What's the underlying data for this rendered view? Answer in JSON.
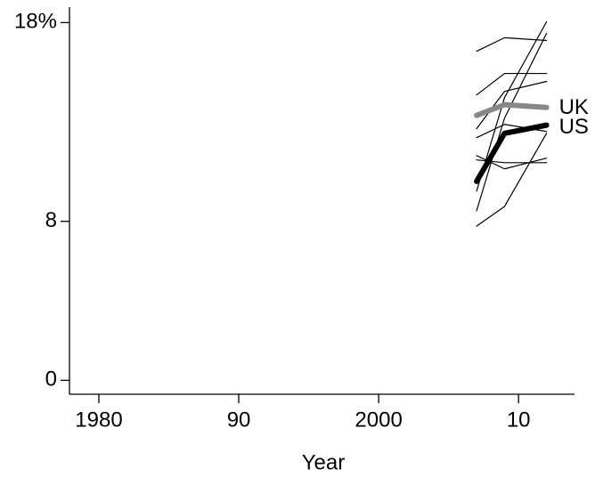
{
  "chart_data": {
    "type": "line",
    "x": [
      2007,
      2009,
      2012
    ],
    "xlabel": "Year",
    "xlim": [
      1977.9,
      2014
    ],
    "xticks": [
      1980,
      {
        "value": 1990,
        "label": "90"
      },
      2000,
      {
        "value": 2010,
        "label": "10"
      }
    ],
    "ylim": [
      -0.7,
      18.6
    ],
    "yticks": [
      0,
      8,
      {
        "value": 18,
        "label": "18%"
      }
    ],
    "series": [
      {
        "color": "#000000",
        "values": [
          16.56,
          17.24,
          17.1
        ]
      },
      {
        "color": "#000000",
        "values": [
          14.36,
          15.44,
          15.44
        ]
      },
      {
        "color": "#000000",
        "values": [
          12.66,
          14.54,
          15.04
        ]
      },
      {
        "color": "#000000",
        "values": [
          9.52,
          14.23,
          18.04
        ]
      },
      {
        "color": "#000000",
        "values": [
          8.53,
          13.2,
          17.46
        ]
      },
      {
        "color": "#000000",
        "values": [
          7.76,
          8.75,
          12.43
        ]
      },
      {
        "color": "#000000",
        "values": [
          11.31,
          10.64,
          11.18
        ]
      },
      {
        "color": "#000000",
        "values": [
          11.09,
          10.95,
          10.95
        ]
      },
      {
        "color": "#000000",
        "values": [
          12.21,
          12.88,
          12.52
        ]
      },
      {
        "name": "UK",
        "color": "#888888",
        "values": [
          13.33,
          13.87,
          13.73
        ]
      },
      {
        "name": "US",
        "color": "#000000",
        "values": [
          10.01,
          12.43,
          12.84
        ]
      }
    ]
  }
}
